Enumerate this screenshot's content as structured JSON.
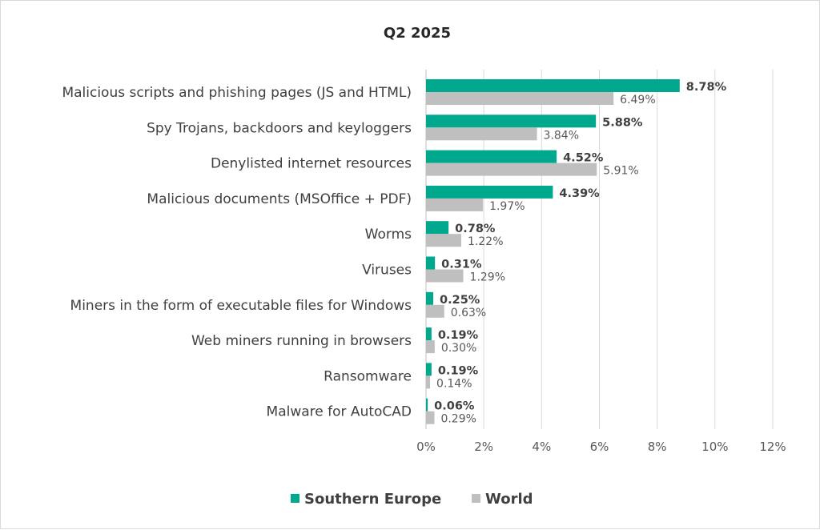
{
  "chart_data": {
    "type": "bar",
    "orientation": "horizontal",
    "title": "Q2 2025",
    "xlabel": "",
    "ylabel": "",
    "xlim": [
      0,
      12
    ],
    "tick_step": 2,
    "tick_labels": [
      "0%",
      "2%",
      "4%",
      "6%",
      "8%",
      "10%",
      "12%"
    ],
    "grid": true,
    "legend_position": "bottom",
    "categories": [
      "Malicious scripts and phishing pages (JS and HTML)",
      "Spy Trojans, backdoors and keyloggers",
      "Denylisted internet resources",
      "Malicious documents (MSOffice + PDF)",
      "Worms",
      "Viruses",
      "Miners in the form of executable files for Windows",
      "Web miners running in browsers",
      "Ransomware",
      "Malware for AutoCAD"
    ],
    "series": [
      {
        "name": "Southern Europe",
        "color": "#00a88e",
        "values": [
          8.78,
          5.88,
          4.52,
          4.39,
          0.78,
          0.31,
          0.25,
          0.19,
          0.19,
          0.06
        ],
        "labels": [
          "8.78%",
          "5.88%",
          "4.52%",
          "4.39%",
          "0.78%",
          "0.31%",
          "0.25%",
          "0.19%",
          "0.19%",
          "0.06%"
        ]
      },
      {
        "name": "World",
        "color": "#bfbfbf",
        "values": [
          6.49,
          3.84,
          5.91,
          1.97,
          1.22,
          1.29,
          0.63,
          0.3,
          0.14,
          0.29
        ],
        "labels": [
          "6.49%",
          "3.84%",
          "5.91%",
          "1.97%",
          "1.22%",
          "1.29%",
          "0.63%",
          "0.30%",
          "0.14%",
          "0.29%"
        ]
      }
    ]
  }
}
